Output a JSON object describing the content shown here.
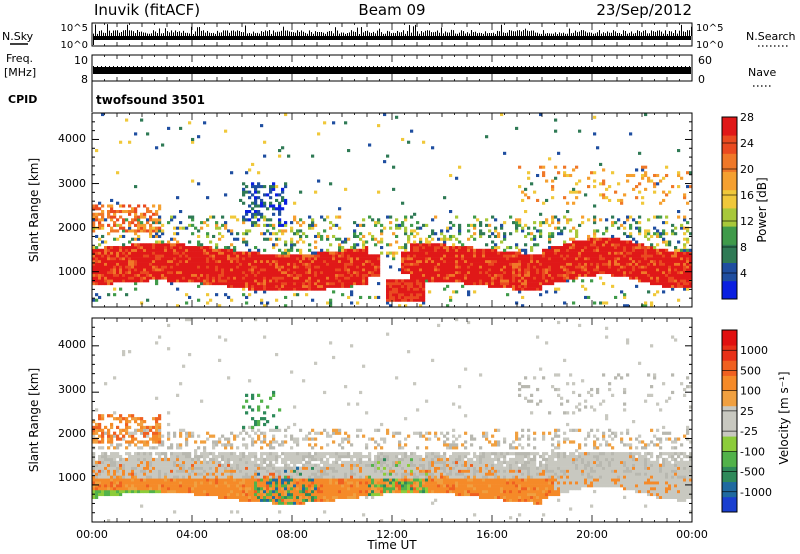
{
  "header": {
    "station": "Inuvik (fitACF)",
    "beam": "Beam 09",
    "date": "23/Sep/2012"
  },
  "labels": {
    "nsky": "N.Sky",
    "freq": "Freq.",
    "freq_unit": "[MHz]",
    "cpid": "CPID",
    "nsearch": "N.Search",
    "nave": "Nave",
    "cpid_value": "twofsound 3501"
  },
  "chart_data": [
    {
      "type": "line",
      "title": "N.Sky / N.Search",
      "ylabel_left": "N.Sky",
      "ylabel_right": "N.Search",
      "yticks_left": [
        "10^5",
        "10^0"
      ],
      "yticks_right": [
        "10^5",
        "10^0"
      ],
      "scale": "log"
    },
    {
      "type": "line",
      "title": "Freq. / Nave",
      "ylabel_left": "Freq. [MHz]",
      "ylabel_right": "Nave",
      "yticks_left": [
        "10",
        "8"
      ],
      "yticks_right": [
        "60",
        "0"
      ],
      "ylim_left": [
        8,
        10
      ],
      "ylim_right": [
        0,
        60
      ]
    },
    {
      "type": "heatmap",
      "title": "Power",
      "ylabel": "Slant Range [km]",
      "yticks": [
        "1000",
        "2000",
        "3000",
        "4000"
      ],
      "ylim": [
        200,
        4600
      ],
      "xlim": [
        "00:00",
        "24:00"
      ],
      "colorbar": {
        "label": "Power [dB]",
        "ticks": [
          "4",
          "8",
          "12",
          "16",
          "20",
          "24",
          "28"
        ],
        "colors": [
          "#0a1fe0",
          "#1f4ea0",
          "#2f7a55",
          "#3f9a4a",
          "#a8c83a",
          "#f0c83a",
          "#f5a030",
          "#f07828",
          "#ea4a20",
          "#e01818"
        ]
      }
    },
    {
      "type": "heatmap",
      "title": "Velocity",
      "ylabel": "Slant Range [km]",
      "yticks": [
        "1000",
        "2000",
        "3000",
        "4000"
      ],
      "ylim": [
        200,
        4600
      ],
      "xlim": [
        "00:00",
        "24:00"
      ],
      "colorbar": {
        "label": "Velocity [m s⁻¹]",
        "ticks": [
          "1000",
          "500",
          "100",
          "25",
          "-25",
          "-100",
          "-500",
          "-1000"
        ],
        "colors": [
          "#1a3fd0",
          "#1f6aa0",
          "#2e8a5a",
          "#52b24a",
          "#8ccc3a",
          "#c8c8c0",
          "#c8c8c0",
          "#f0a040",
          "#f58a28",
          "#f06020",
          "#e83018",
          "#e01010"
        ]
      },
      "xlabel": "Time UT",
      "xticks": [
        "00:00",
        "04:00",
        "08:00",
        "12:00",
        "16:00",
        "20:00",
        "00:00"
      ]
    }
  ]
}
